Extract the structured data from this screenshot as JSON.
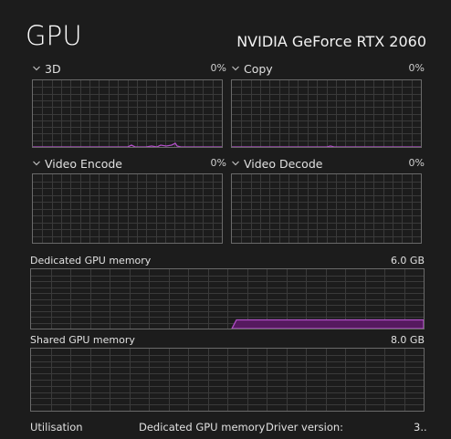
{
  "header": {
    "title": "GPU",
    "model": "NVIDIA GeForce RTX 2060"
  },
  "engines": [
    {
      "label": "3D",
      "percent": "0%",
      "utilisation": 0.04
    },
    {
      "label": "Copy",
      "percent": "0%",
      "utilisation": 0.0
    },
    {
      "label": "Video Encode",
      "percent": "0%",
      "utilisation": 0.0
    },
    {
      "label": "Video Decode",
      "percent": "0%",
      "utilisation": 0.0
    }
  ],
  "dedicated_memory": {
    "label": "Dedicated GPU memory",
    "max": "6.0 GB",
    "used_fraction": 0.15
  },
  "shared_memory": {
    "label": "Shared GPU memory",
    "max": "8.0 GB",
    "used_fraction": 0.0
  },
  "bottom": {
    "utilisation": "Utilisation",
    "dedicated": "Dedicated GPU memory",
    "driver": "Driver version:",
    "driver_value": "3.."
  },
  "colors": {
    "accent": "#b04fc6",
    "fill": "#55195f",
    "grid": "#3a3a3a",
    "border": "#6a6a6a"
  },
  "icons": {
    "expand": "chevron-down-icon"
  }
}
